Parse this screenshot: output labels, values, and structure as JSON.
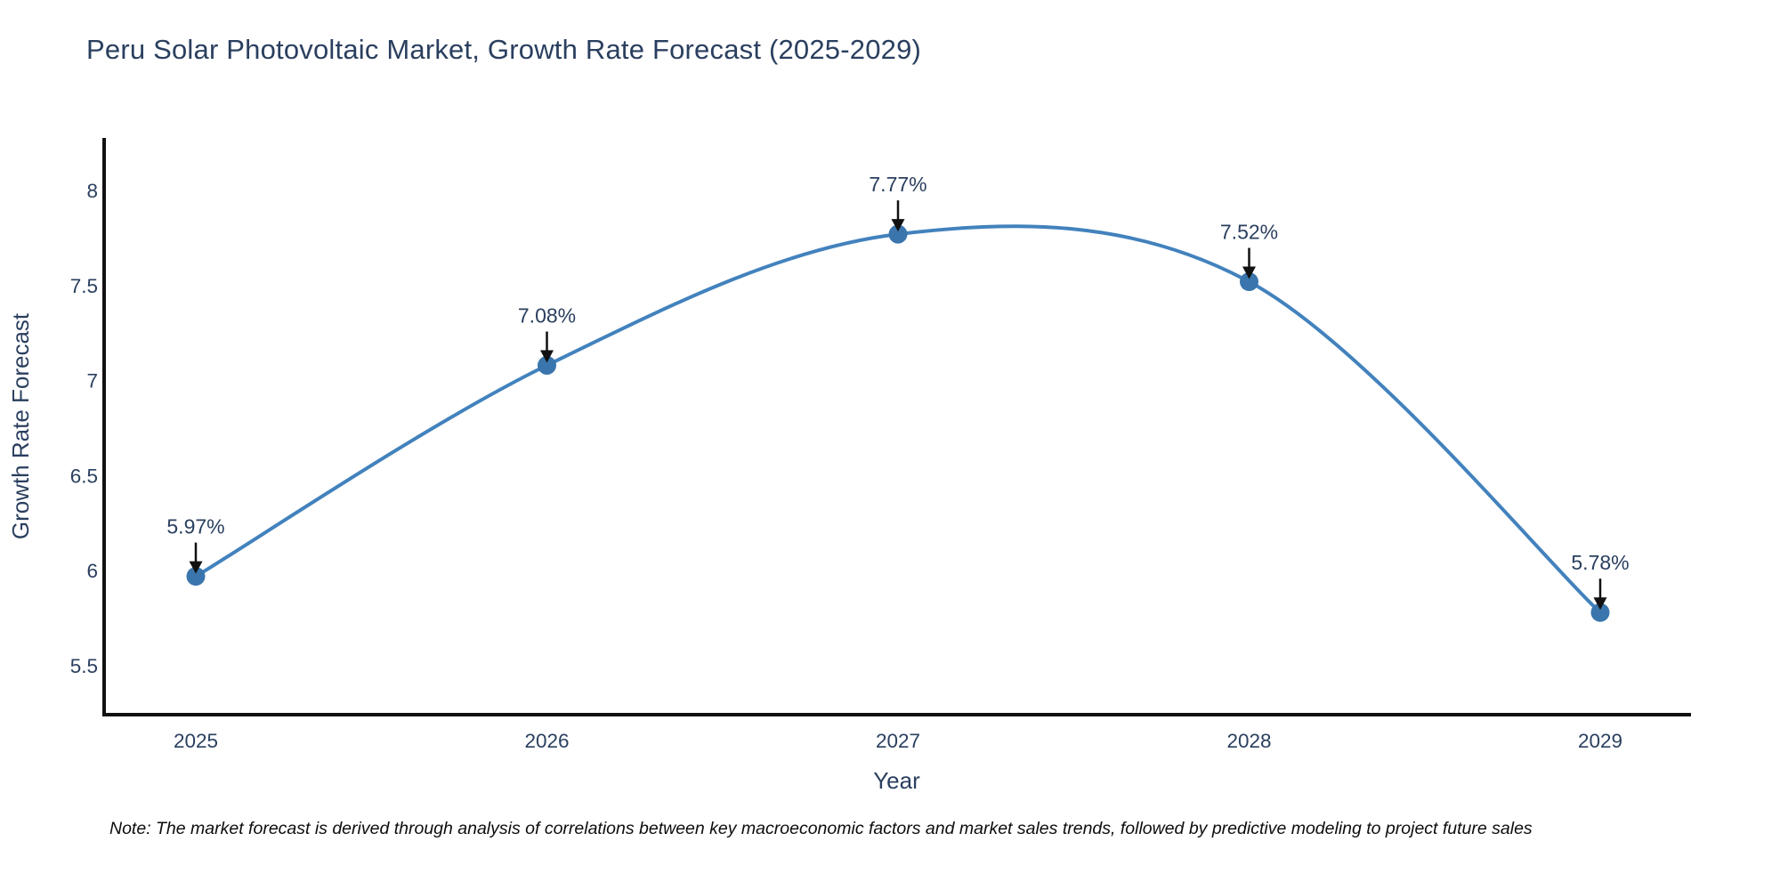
{
  "chart_data": {
    "type": "line",
    "title": "Peru Solar Photovoltaic Market, Growth Rate Forecast (2025-2029)",
    "xlabel": "Year",
    "ylabel": "Growth Rate Forecast",
    "x": [
      2025,
      2026,
      2027,
      2028,
      2029
    ],
    "x_tick_labels": [
      "2025",
      "2026",
      "2027",
      "2028",
      "2029"
    ],
    "series": [
      {
        "name": "Growth Rate Forecast",
        "values": [
          5.97,
          7.08,
          7.77,
          7.52,
          5.78
        ],
        "point_labels": [
          "5.97%",
          "7.08%",
          "7.77%",
          "7.52%",
          "5.78%"
        ]
      }
    ],
    "y_ticks": [
      8,
      7.5,
      7,
      6.5,
      6,
      5.5
    ],
    "y_tick_labels": [
      "8",
      "7.5",
      "7",
      "6.5",
      "6",
      "5.5"
    ],
    "ylim": [
      5.23,
      8.28
    ],
    "xlim": [
      2024.73,
      2029.26
    ],
    "line_shape": "spline",
    "grid": false,
    "legend": "none",
    "markers": true,
    "annotations_have_arrows": true,
    "colors": {
      "line": "#4282bd",
      "marker": "#3a76ad",
      "axis_line": "#111111",
      "text": "#2a3f5f",
      "arrow": "#111111",
      "note": "#0d0d0d",
      "background": "#ffffff"
    }
  },
  "note": "Note: The market forecast is derived through analysis of correlations between key macroeconomic factors and market sales trends, followed by predictive modeling to project future sales"
}
